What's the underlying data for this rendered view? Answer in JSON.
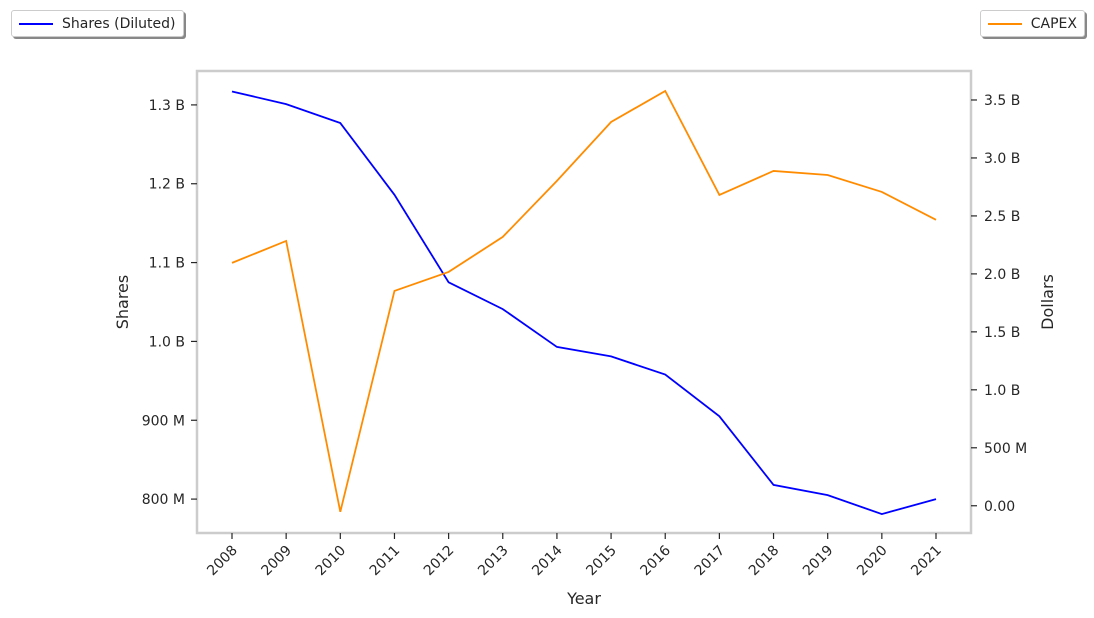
{
  "chart_data": {
    "type": "line",
    "x": [
      2008,
      2009,
      2010,
      2011,
      2012,
      2013,
      2014,
      2015,
      2016,
      2017,
      2018,
      2019,
      2020,
      2021
    ],
    "xlabel": "Year",
    "series": [
      {
        "name": "Shares (Diluted)",
        "axis": "left",
        "color": "#0000ff",
        "values": [
          1317000000.0,
          1301000000.0,
          1277000000.0,
          1186000000.0,
          1075000000.0,
          1041000000.0,
          993000000.0,
          981000000.0,
          958000000.0,
          905000000.0,
          818000000.0,
          805000000.0,
          781000000.0,
          800000000.0
        ]
      },
      {
        "name": "CAPEX",
        "axis": "right",
        "color": "#ff8c00",
        "values": [
          2095000000.0,
          2284000000.0,
          -52000000.0,
          1853000000.0,
          2017000000.0,
          2319000000.0,
          2802000000.0,
          3310000000.0,
          3578000000.0,
          2681000000.0,
          2888000000.0,
          2853000000.0,
          2707000000.0,
          2466000000.0
        ]
      }
    ],
    "left_axis": {
      "label": "Shares",
      "ticks": [
        800000000.0,
        900000000.0,
        1000000000.0,
        1100000000.0,
        1200000000.0,
        1300000000.0
      ],
      "tick_labels": [
        "800 M",
        "900 M",
        "1.0 B",
        "1.1 B",
        "1.2 B",
        "1.3 B"
      ],
      "range": [
        757000000.0,
        1343000000.0
      ]
    },
    "right_axis": {
      "label": "Dollars",
      "ticks": [
        0,
        500000000.0,
        1000000000.0,
        1500000000.0,
        2000000000.0,
        2500000000.0,
        3000000000.0,
        3500000000.0
      ],
      "tick_labels": [
        "0.00",
        "500 M",
        "1.0 B",
        "1.5 B",
        "2.0 B",
        "2.5 B",
        "3.0 B",
        "3.5 B"
      ],
      "range": [
        -235000000.0,
        3750000000.0
      ]
    },
    "grid": false,
    "legend": [
      "top-left",
      "top-right"
    ]
  }
}
